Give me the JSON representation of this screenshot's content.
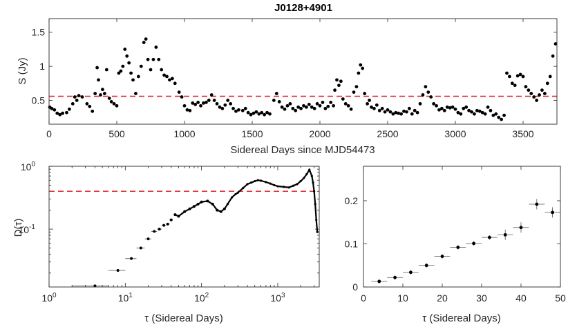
{
  "chart_data": [
    {
      "type": "scatter",
      "title": "J0128+4901",
      "xlabel": "Sidereal Days since MJD54473",
      "ylabel": "S (Jy)",
      "xlim": [
        0,
        3750
      ],
      "ylim": [
        0.15,
        1.7
      ],
      "xticks": [
        0,
        500,
        1000,
        1500,
        2000,
        2500,
        3000,
        3500
      ],
      "xtick_labels": [
        "0",
        "500",
        "1000",
        "1500",
        "2000",
        "2500",
        "3000",
        "3500"
      ],
      "yticks": [
        0.5,
        1.0,
        1.5
      ],
      "ytick_labels": [
        "0.5",
        "1",
        "1.5"
      ],
      "reference_line": {
        "value": 0.56,
        "style": "dashed",
        "color": "#e0262e"
      },
      "marker_color": "#000000",
      "series": [
        {
          "name": "flux density",
          "points": [
            [
              5,
              0.4
            ],
            [
              20,
              0.38
            ],
            [
              40,
              0.36
            ],
            [
              60,
              0.31
            ],
            [
              80,
              0.29
            ],
            [
              100,
              0.31
            ],
            [
              130,
              0.32
            ],
            [
              150,
              0.37
            ],
            [
              175,
              0.45
            ],
            [
              190,
              0.55
            ],
            [
              205,
              0.5
            ],
            [
              220,
              0.57
            ],
            [
              245,
              0.55
            ],
            [
              280,
              0.45
            ],
            [
              300,
              0.41
            ],
            [
              320,
              0.34
            ],
            [
              340,
              0.6
            ],
            [
              355,
              0.98
            ],
            [
              365,
              0.8
            ],
            [
              380,
              0.58
            ],
            [
              395,
              0.66
            ],
            [
              410,
              0.6
            ],
            [
              425,
              0.95
            ],
            [
              445,
              0.53
            ],
            [
              460,
              0.48
            ],
            [
              480,
              0.45
            ],
            [
              500,
              0.42
            ],
            [
              515,
              0.9
            ],
            [
              530,
              0.93
            ],
            [
              545,
              1.0
            ],
            [
              560,
              1.25
            ],
            [
              575,
              1.15
            ],
            [
              590,
              1.05
            ],
            [
              605,
              0.9
            ],
            [
              620,
              0.8
            ],
            [
              640,
              0.6
            ],
            [
              660,
              0.85
            ],
            [
              680,
              1.0
            ],
            [
              700,
              1.35
            ],
            [
              715,
              1.4
            ],
            [
              730,
              1.1
            ],
            [
              750,
              0.95
            ],
            [
              770,
              1.1
            ],
            [
              790,
              1.28
            ],
            [
              810,
              1.1
            ],
            [
              830,
              0.95
            ],
            [
              850,
              0.87
            ],
            [
              870,
              0.85
            ],
            [
              890,
              0.8
            ],
            [
              910,
              0.82
            ],
            [
              930,
              0.75
            ],
            [
              960,
              0.62
            ],
            [
              980,
              0.55
            ],
            [
              1000,
              0.42
            ],
            [
              1020,
              0.36
            ],
            [
              1040,
              0.35
            ],
            [
              1060,
              0.46
            ],
            [
              1080,
              0.44
            ],
            [
              1100,
              0.47
            ],
            [
              1120,
              0.42
            ],
            [
              1140,
              0.46
            ],
            [
              1160,
              0.47
            ],
            [
              1180,
              0.5
            ],
            [
              1200,
              0.58
            ],
            [
              1220,
              0.5
            ],
            [
              1240,
              0.45
            ],
            [
              1260,
              0.4
            ],
            [
              1280,
              0.38
            ],
            [
              1300,
              0.43
            ],
            [
              1320,
              0.5
            ],
            [
              1340,
              0.45
            ],
            [
              1360,
              0.38
            ],
            [
              1380,
              0.34
            ],
            [
              1400,
              0.36
            ],
            [
              1430,
              0.35
            ],
            [
              1450,
              0.38
            ],
            [
              1470,
              0.32
            ],
            [
              1490,
              0.29
            ],
            [
              1510,
              0.31
            ],
            [
              1530,
              0.33
            ],
            [
              1550,
              0.3
            ],
            [
              1570,
              0.32
            ],
            [
              1590,
              0.29
            ],
            [
              1610,
              0.32
            ],
            [
              1630,
              0.3
            ],
            [
              1660,
              0.5
            ],
            [
              1680,
              0.6
            ],
            [
              1700,
              0.48
            ],
            [
              1720,
              0.4
            ],
            [
              1740,
              0.37
            ],
            [
              1760,
              0.42
            ],
            [
              1780,
              0.45
            ],
            [
              1800,
              0.38
            ],
            [
              1820,
              0.35
            ],
            [
              1840,
              0.4
            ],
            [
              1860,
              0.38
            ],
            [
              1880,
              0.42
            ],
            [
              1900,
              0.4
            ],
            [
              1920,
              0.44
            ],
            [
              1940,
              0.4
            ],
            [
              1960,
              0.38
            ],
            [
              1980,
              0.45
            ],
            [
              2000,
              0.42
            ],
            [
              2020,
              0.47
            ],
            [
              2040,
              0.38
            ],
            [
              2060,
              0.41
            ],
            [
              2080,
              0.47
            ],
            [
              2100,
              0.42
            ],
            [
              2110,
              0.65
            ],
            [
              2125,
              0.8
            ],
            [
              2140,
              0.72
            ],
            [
              2155,
              0.78
            ],
            [
              2170,
              0.52
            ],
            [
              2190,
              0.45
            ],
            [
              2210,
              0.42
            ],
            [
              2230,
              0.37
            ],
            [
              2250,
              0.62
            ],
            [
              2270,
              0.7
            ],
            [
              2285,
              0.9
            ],
            [
              2300,
              1.02
            ],
            [
              2315,
              0.97
            ],
            [
              2330,
              0.6
            ],
            [
              2350,
              0.45
            ],
            [
              2365,
              0.5
            ],
            [
              2380,
              0.4
            ],
            [
              2400,
              0.38
            ],
            [
              2420,
              0.43
            ],
            [
              2440,
              0.35
            ],
            [
              2460,
              0.38
            ],
            [
              2480,
              0.33
            ],
            [
              2500,
              0.36
            ],
            [
              2520,
              0.33
            ],
            [
              2540,
              0.3
            ],
            [
              2560,
              0.32
            ],
            [
              2580,
              0.31
            ],
            [
              2600,
              0.3
            ],
            [
              2620,
              0.34
            ],
            [
              2640,
              0.33
            ],
            [
              2660,
              0.38
            ],
            [
              2680,
              0.3
            ],
            [
              2700,
              0.35
            ],
            [
              2720,
              0.32
            ],
            [
              2740,
              0.45
            ],
            [
              2760,
              0.58
            ],
            [
              2780,
              0.7
            ],
            [
              2800,
              0.62
            ],
            [
              2820,
              0.55
            ],
            [
              2840,
              0.45
            ],
            [
              2860,
              0.42
            ],
            [
              2880,
              0.36
            ],
            [
              2900,
              0.38
            ],
            [
              2920,
              0.35
            ],
            [
              2940,
              0.4
            ],
            [
              2960,
              0.39
            ],
            [
              2980,
              0.4
            ],
            [
              3000,
              0.37
            ],
            [
              3020,
              0.32
            ],
            [
              3040,
              0.3
            ],
            [
              3060,
              0.38
            ],
            [
              3080,
              0.4
            ],
            [
              3100,
              0.35
            ],
            [
              3120,
              0.33
            ],
            [
              3140,
              0.3
            ],
            [
              3160,
              0.35
            ],
            [
              3180,
              0.34
            ],
            [
              3200,
              0.32
            ],
            [
              3220,
              0.3
            ],
            [
              3240,
              0.4
            ],
            [
              3260,
              0.35
            ],
            [
              3280,
              0.28
            ],
            [
              3300,
              0.3
            ],
            [
              3320,
              0.25
            ],
            [
              3340,
              0.22
            ],
            [
              3360,
              0.28
            ],
            [
              3380,
              0.9
            ],
            [
              3400,
              0.85
            ],
            [
              3420,
              0.75
            ],
            [
              3440,
              0.72
            ],
            [
              3460,
              0.86
            ],
            [
              3480,
              0.88
            ],
            [
              3500,
              0.85
            ],
            [
              3520,
              0.7
            ],
            [
              3540,
              0.65
            ],
            [
              3560,
              0.6
            ],
            [
              3580,
              0.55
            ],
            [
              3600,
              0.5
            ],
            [
              3620,
              0.58
            ],
            [
              3640,
              0.65
            ],
            [
              3660,
              0.6
            ],
            [
              3680,
              0.75
            ],
            [
              3700,
              0.85
            ],
            [
              3720,
              1.15
            ],
            [
              3740,
              1.33
            ]
          ]
        }
      ]
    },
    {
      "type": "line",
      "title": "",
      "xlabel": "τ (Sidereal Days)",
      "ylabel": "D(τ)",
      "xscale": "log",
      "yscale": "log",
      "xlim": [
        1,
        3500
      ],
      "ylim": [
        0.012,
        1.0
      ],
      "xtick_labels": [
        "10^0",
        "10^1",
        "10^2",
        "10^3"
      ],
      "ytick_labels": [
        "10^-1",
        "10^0"
      ],
      "reference_line": {
        "value": 0.4,
        "style": "dashed",
        "color": "#e0262e"
      },
      "series": [
        {
          "name": "structure function",
          "points": [
            [
              4,
              0.0125
            ],
            [
              8,
              0.022
            ],
            [
              12,
              0.034
            ],
            [
              16,
              0.05
            ],
            [
              20,
              0.07
            ],
            [
              24,
              0.092
            ],
            [
              28,
              0.1
            ],
            [
              32,
              0.115
            ],
            [
              36,
              0.12
            ],
            [
              40,
              0.14
            ],
            [
              45,
              0.17
            ],
            [
              50,
              0.16
            ],
            [
              60,
              0.19
            ],
            [
              70,
              0.21
            ],
            [
              80,
              0.23
            ],
            [
              90,
              0.25
            ],
            [
              100,
              0.27
            ],
            [
              120,
              0.28
            ],
            [
              140,
              0.25
            ],
            [
              160,
              0.2
            ],
            [
              180,
              0.19
            ],
            [
              200,
              0.21
            ],
            [
              220,
              0.25
            ],
            [
              250,
              0.32
            ],
            [
              280,
              0.36
            ],
            [
              300,
              0.38
            ],
            [
              350,
              0.45
            ],
            [
              400,
              0.52
            ],
            [
              450,
              0.55
            ],
            [
              500,
              0.58
            ],
            [
              550,
              0.6
            ],
            [
              600,
              0.59
            ],
            [
              700,
              0.56
            ],
            [
              800,
              0.53
            ],
            [
              900,
              0.5
            ],
            [
              1000,
              0.48
            ],
            [
              1200,
              0.47
            ],
            [
              1400,
              0.46
            ],
            [
              1600,
              0.49
            ],
            [
              1800,
              0.52
            ],
            [
              2000,
              0.58
            ],
            [
              2200,
              0.65
            ],
            [
              2400,
              0.75
            ],
            [
              2600,
              0.88
            ],
            [
              2800,
              0.7
            ],
            [
              2900,
              0.55
            ],
            [
              3000,
              0.4
            ],
            [
              3100,
              0.25
            ],
            [
              3200,
              0.14
            ],
            [
              3300,
              0.09
            ]
          ]
        }
      ]
    },
    {
      "type": "scatter",
      "title": "",
      "xlabel": "τ (Sidereal Days)",
      "ylabel": "",
      "xlim": [
        0,
        50
      ],
      "ylim": [
        0,
        0.28
      ],
      "xticks": [
        0,
        10,
        20,
        30,
        40,
        50
      ],
      "xtick_labels": [
        "0",
        "10",
        "20",
        "30",
        "40",
        "50"
      ],
      "yticks": [
        0,
        0.1,
        0.2
      ],
      "ytick_labels": [
        "0",
        "0.1",
        "0.2"
      ],
      "series": [
        {
          "name": "structure function (short lags)",
          "points": [
            [
              4,
              0.013
            ],
            [
              8,
              0.022
            ],
            [
              12,
              0.034
            ],
            [
              16,
              0.05
            ],
            [
              20,
              0.071
            ],
            [
              24,
              0.092
            ],
            [
              28,
              0.101
            ],
            [
              32,
              0.115
            ],
            [
              36,
              0.121
            ],
            [
              40,
              0.138
            ],
            [
              44,
              0.192
            ],
            [
              48,
              0.173
            ]
          ]
        }
      ]
    }
  ]
}
